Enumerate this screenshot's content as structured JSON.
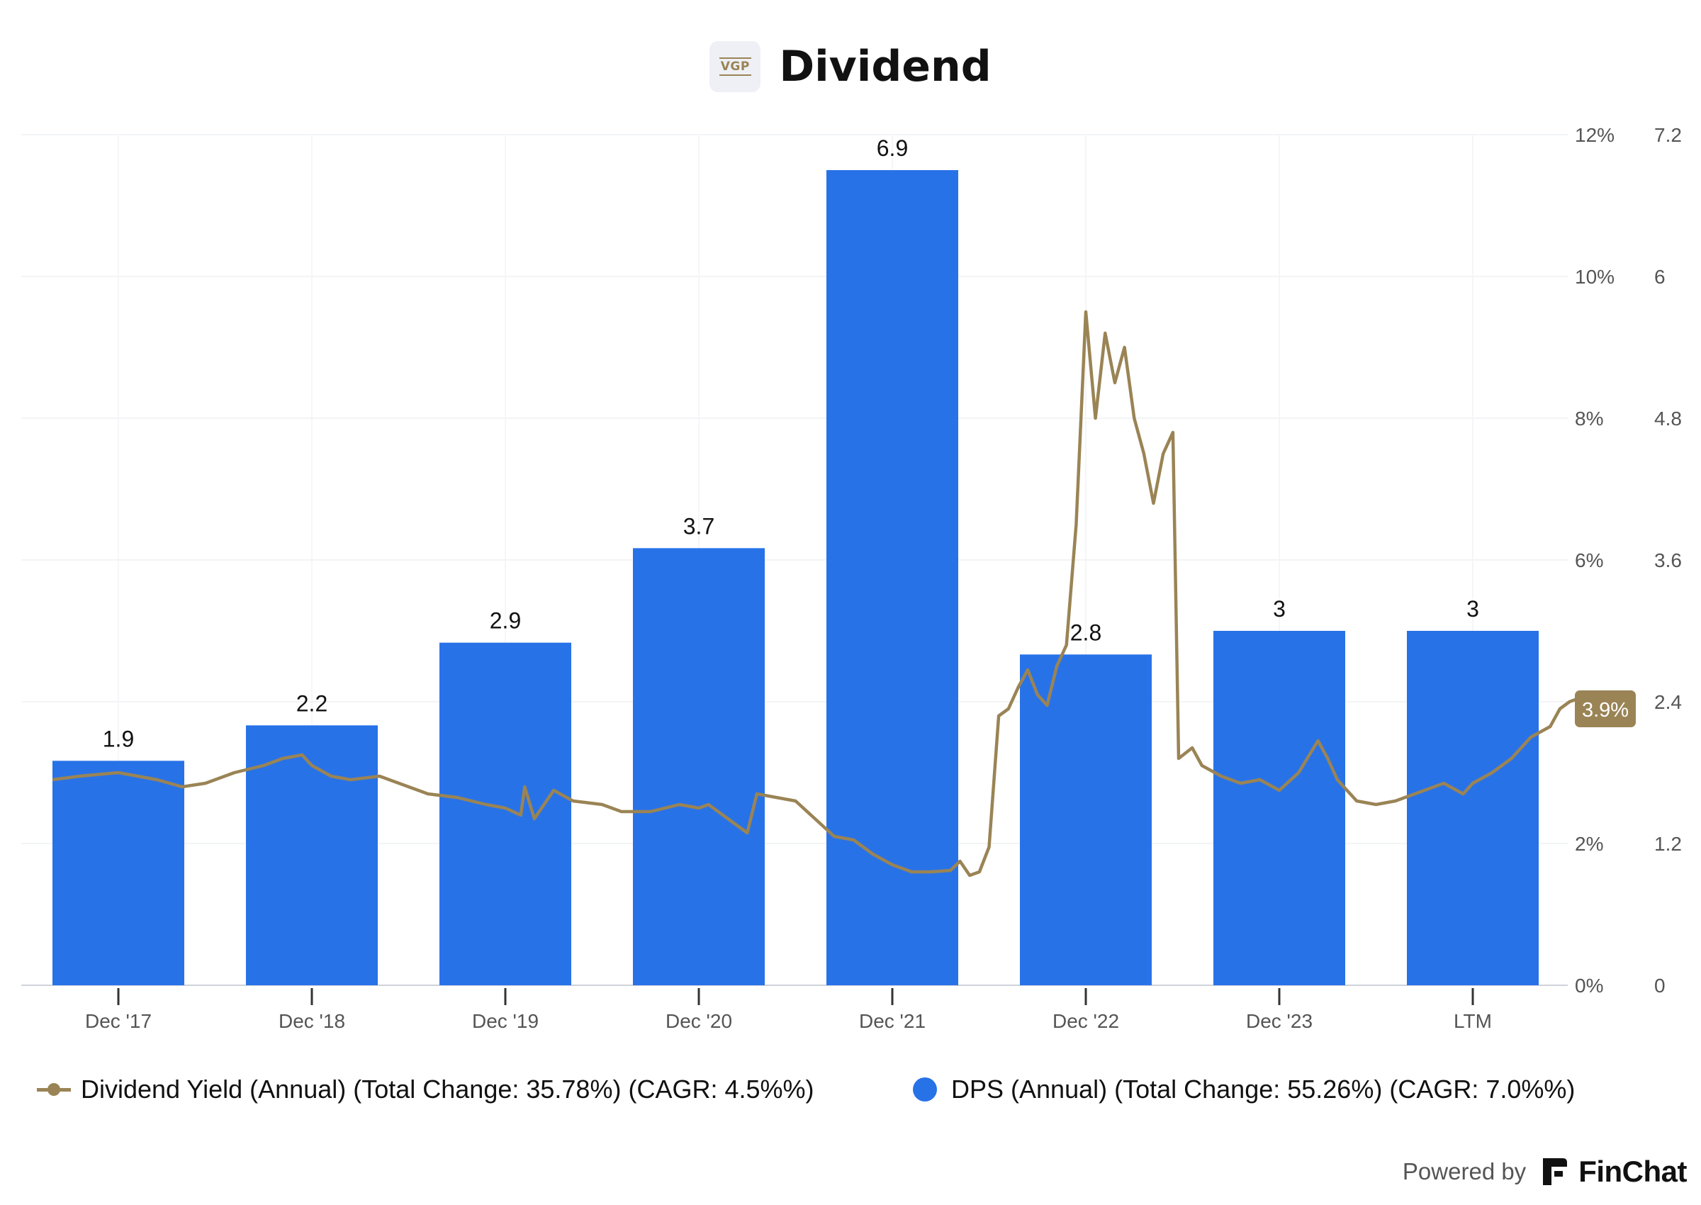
{
  "header": {
    "title": "Dividend",
    "logo_text": "VGP",
    "logo_icon": "vgp-logo-icon"
  },
  "chart_data": {
    "type": "bar",
    "title": "Dividend",
    "categories": [
      "Dec '17",
      "Dec '18",
      "Dec '19",
      "Dec '20",
      "Dec '21",
      "Dec '22",
      "Dec '23",
      "LTM"
    ],
    "series": [
      {
        "name": "DPS (Annual) (Total Change: 55.26%) (CAGR: 7.0%%)",
        "type": "bar",
        "axis": "right",
        "color": "#2872e8",
        "values": [
          1.9,
          2.2,
          2.9,
          3.7,
          6.9,
          2.8,
          3,
          3
        ],
        "labels": [
          "1.9",
          "2.2",
          "2.9",
          "3.7",
          "6.9",
          "2.8",
          "3",
          "3"
        ]
      },
      {
        "name": "Dividend Yield (Annual) (Total Change: 35.78%) (CAGR: 4.5%%)",
        "type": "line",
        "axis": "left-inner",
        "unit": "%",
        "color": "#9a8455",
        "last_value_label": "3.9%",
        "points": [
          [
            -0.34,
            2.9
          ],
          [
            -0.2,
            2.95
          ],
          [
            0,
            3.0
          ],
          [
            0.2,
            2.9
          ],
          [
            0.33,
            2.8
          ],
          [
            0.45,
            2.85
          ],
          [
            0.6,
            3.0
          ],
          [
            0.75,
            3.1
          ],
          [
            0.85,
            3.2
          ],
          [
            0.95,
            3.25
          ],
          [
            1.0,
            3.1
          ],
          [
            1.1,
            2.95
          ],
          [
            1.2,
            2.9
          ],
          [
            1.35,
            2.95
          ],
          [
            1.5,
            2.8
          ],
          [
            1.6,
            2.7
          ],
          [
            1.75,
            2.65
          ],
          [
            1.9,
            2.55
          ],
          [
            2.0,
            2.5
          ],
          [
            2.08,
            2.4
          ],
          [
            2.1,
            2.8
          ],
          [
            2.15,
            2.35
          ],
          [
            2.25,
            2.75
          ],
          [
            2.35,
            2.6
          ],
          [
            2.5,
            2.55
          ],
          [
            2.6,
            2.45
          ],
          [
            2.75,
            2.45
          ],
          [
            2.9,
            2.55
          ],
          [
            3.0,
            2.5
          ],
          [
            3.05,
            2.55
          ],
          [
            3.15,
            2.35
          ],
          [
            3.25,
            2.15
          ],
          [
            3.3,
            2.7
          ],
          [
            3.4,
            2.65
          ],
          [
            3.5,
            2.6
          ],
          [
            3.6,
            2.35
          ],
          [
            3.7,
            2.1
          ],
          [
            3.8,
            2.05
          ],
          [
            3.9,
            1.85
          ],
          [
            4.0,
            1.7
          ],
          [
            4.1,
            1.6
          ],
          [
            4.2,
            1.6
          ],
          [
            4.3,
            1.62
          ],
          [
            4.35,
            1.75
          ],
          [
            4.4,
            1.55
          ],
          [
            4.45,
            1.6
          ],
          [
            4.5,
            1.95
          ],
          [
            4.55,
            3.8
          ],
          [
            4.6,
            3.9
          ],
          [
            4.65,
            4.2
          ],
          [
            4.7,
            4.45
          ],
          [
            4.75,
            4.1
          ],
          [
            4.8,
            3.95
          ],
          [
            4.85,
            4.5
          ],
          [
            4.9,
            4.8
          ],
          [
            4.95,
            6.5
          ],
          [
            5.0,
            9.5
          ],
          [
            5.05,
            8.0
          ],
          [
            5.1,
            9.2
          ],
          [
            5.15,
            8.5
          ],
          [
            5.2,
            9.0
          ],
          [
            5.25,
            8.0
          ],
          [
            5.3,
            7.5
          ],
          [
            5.35,
            6.8
          ],
          [
            5.4,
            7.5
          ],
          [
            5.45,
            7.8
          ],
          [
            5.48,
            3.2
          ],
          [
            5.55,
            3.35
          ],
          [
            5.6,
            3.1
          ],
          [
            5.7,
            2.95
          ],
          [
            5.8,
            2.85
          ],
          [
            5.9,
            2.9
          ],
          [
            6.0,
            2.75
          ],
          [
            6.1,
            3.0
          ],
          [
            6.2,
            3.45
          ],
          [
            6.25,
            3.2
          ],
          [
            6.3,
            2.9
          ],
          [
            6.4,
            2.6
          ],
          [
            6.5,
            2.55
          ],
          [
            6.6,
            2.6
          ],
          [
            6.75,
            2.75
          ],
          [
            6.85,
            2.85
          ],
          [
            6.95,
            2.7
          ],
          [
            7.0,
            2.85
          ],
          [
            7.1,
            3.0
          ],
          [
            7.2,
            3.2
          ],
          [
            7.3,
            3.5
          ],
          [
            7.4,
            3.65
          ],
          [
            7.45,
            3.9
          ],
          [
            7.5,
            4.0
          ],
          [
            7.55,
            4.05
          ],
          [
            7.6,
            3.9
          ]
        ]
      }
    ],
    "axes": {
      "left_inner": {
        "ticks": [
          "0%",
          "2%",
          "4%",
          "6%",
          "8%",
          "10%",
          "12%"
        ],
        "min": 0,
        "max": 12
      },
      "right": {
        "ticks": [
          "0",
          "1.2",
          "2.4",
          "3.6",
          "4.8",
          "6",
          "7.2"
        ],
        "min": 0,
        "max": 7.2
      }
    },
    "grid": true,
    "legend": "bottom"
  },
  "legend": {
    "yield": "Dividend Yield (Annual) (Total Change: 35.78%) (CAGR: 4.5%%)",
    "dps": "DPS (Annual) (Total Change: 55.26%) (CAGR: 7.0%%)"
  },
  "footer": {
    "powered_by": "Powered by",
    "brand": "FinChat",
    "brand_icon": "finchat-logo-icon"
  }
}
